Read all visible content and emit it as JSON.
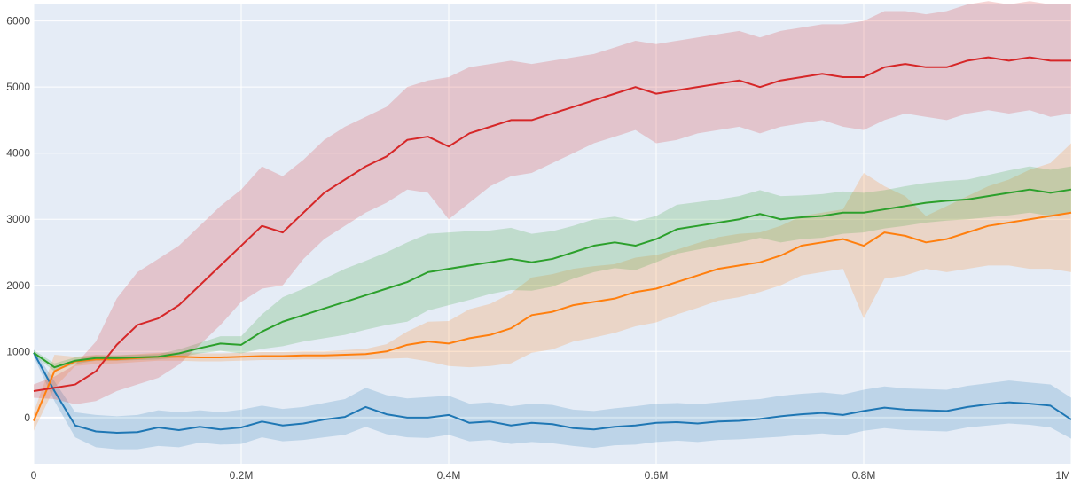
{
  "chart_data": {
    "type": "line",
    "title": "",
    "xlabel": "",
    "ylabel": "",
    "xlim": [
      0,
      1000000
    ],
    "ylim": [
      -700,
      6250
    ],
    "grid": true,
    "legend": "none",
    "background": "#e5ecf6",
    "x_ticks": [
      {
        "value": 0,
        "label": "0"
      },
      {
        "value": 200000,
        "label": "0.2M"
      },
      {
        "value": 400000,
        "label": "0.4M"
      },
      {
        "value": 600000,
        "label": "0.6M"
      },
      {
        "value": 800000,
        "label": "0.8M"
      },
      {
        "value": 1000000,
        "label": "1M"
      }
    ],
    "y_ticks": [
      {
        "value": 0,
        "label": "0"
      },
      {
        "value": 1000,
        "label": "1000"
      },
      {
        "value": 2000,
        "label": "2000"
      },
      {
        "value": 3000,
        "label": "3000"
      },
      {
        "value": 4000,
        "label": "4000"
      },
      {
        "value": 5000,
        "label": "5000"
      },
      {
        "value": 6000,
        "label": "6000"
      }
    ],
    "x": [
      0,
      20000,
      40000,
      60000,
      80000,
      100000,
      120000,
      140000,
      160000,
      180000,
      200000,
      220000,
      240000,
      260000,
      280000,
      300000,
      320000,
      340000,
      360000,
      380000,
      400000,
      420000,
      440000,
      460000,
      480000,
      500000,
      520000,
      540000,
      560000,
      580000,
      600000,
      620000,
      640000,
      660000,
      680000,
      700000,
      720000,
      740000,
      760000,
      780000,
      800000,
      820000,
      840000,
      860000,
      880000,
      900000,
      920000,
      940000,
      960000,
      980000,
      1000000
    ],
    "series": [
      {
        "color": "#1f77b4",
        "band_color": "#1f77b4",
        "mean": [
          980,
          400,
          -120,
          -210,
          -230,
          -220,
          -150,
          -190,
          -140,
          -180,
          -150,
          -60,
          -120,
          -90,
          -30,
          10,
          160,
          50,
          0,
          0,
          40,
          -80,
          -60,
          -120,
          -80,
          -100,
          -160,
          -180,
          -140,
          -120,
          -80,
          -70,
          -90,
          -60,
          -50,
          -20,
          20,
          50,
          70,
          40,
          100,
          150,
          120,
          110,
          100,
          160,
          200,
          230,
          210,
          180,
          -30
        ],
        "lower": [
          920,
          250,
          -300,
          -450,
          -480,
          -480,
          -430,
          -450,
          -380,
          -410,
          -400,
          -300,
          -360,
          -340,
          -300,
          -260,
          -140,
          -250,
          -300,
          -310,
          -260,
          -360,
          -340,
          -400,
          -370,
          -390,
          -430,
          -460,
          -420,
          -410,
          -370,
          -350,
          -370,
          -340,
          -330,
          -310,
          -290,
          -260,
          -240,
          -270,
          -200,
          -160,
          -190,
          -200,
          -210,
          -150,
          -120,
          -90,
          -110,
          -150,
          -320
        ],
        "upper": [
          1030,
          550,
          80,
          40,
          20,
          40,
          110,
          80,
          110,
          80,
          120,
          180,
          130,
          160,
          220,
          280,
          450,
          340,
          290,
          310,
          330,
          210,
          230,
          170,
          210,
          190,
          120,
          100,
          140,
          170,
          210,
          220,
          200,
          230,
          260,
          280,
          330,
          360,
          380,
          350,
          420,
          470,
          440,
          430,
          420,
          480,
          520,
          560,
          530,
          500,
          300
        ]
      },
      {
        "color": "#ff7f0e",
        "band_color": "#ff7f0e",
        "mean": [
          -50,
          700,
          850,
          880,
          880,
          900,
          920,
          920,
          910,
          910,
          920,
          930,
          930,
          940,
          940,
          950,
          960,
          1000,
          1100,
          1150,
          1120,
          1200,
          1250,
          1350,
          1550,
          1600,
          1700,
          1750,
          1800,
          1900,
          1950,
          2050,
          2150,
          2250,
          2300,
          2350,
          2450,
          2600,
          2650,
          2700,
          2600,
          2800,
          2750,
          2650,
          2700,
          2800,
          2900,
          2950,
          3000,
          3050,
          3100
        ],
        "lower": [
          -200,
          450,
          780,
          810,
          820,
          840,
          860,
          860,
          850,
          850,
          860,
          870,
          870,
          880,
          880,
          880,
          880,
          890,
          900,
          850,
          780,
          760,
          780,
          820,
          980,
          1030,
          1150,
          1210,
          1280,
          1380,
          1440,
          1560,
          1660,
          1770,
          1820,
          1900,
          2000,
          2150,
          2200,
          2250,
          1500,
          2100,
          2150,
          2250,
          2200,
          2250,
          2300,
          2300,
          2250,
          2250,
          2200
        ],
        "upper": [
          80,
          950,
          920,
          950,
          940,
          960,
          980,
          980,
          970,
          970,
          980,
          990,
          990,
          1000,
          1000,
          1020,
          1040,
          1110,
          1300,
          1450,
          1460,
          1640,
          1720,
          1880,
          2120,
          2170,
          2250,
          2290,
          2320,
          2420,
          2460,
          2540,
          2640,
          2730,
          2780,
          2800,
          2900,
          3050,
          3100,
          3150,
          3700,
          3500,
          3350,
          3050,
          3200,
          3350,
          3500,
          3600,
          3750,
          3850,
          4150
        ]
      },
      {
        "color": "#2ca02c",
        "band_color": "#2ca02c",
        "mean": [
          980,
          760,
          860,
          900,
          900,
          910,
          920,
          970,
          1050,
          1120,
          1100,
          1300,
          1450,
          1550,
          1650,
          1750,
          1850,
          1950,
          2050,
          2200,
          2250,
          2300,
          2350,
          2400,
          2350,
          2400,
          2500,
          2600,
          2650,
          2600,
          2700,
          2850,
          2900,
          2950,
          3000,
          3080,
          3000,
          3030,
          3050,
          3100,
          3100,
          3150,
          3200,
          3250,
          3280,
          3300,
          3350,
          3400,
          3450,
          3400,
          3450
        ],
        "lower": [
          940,
          700,
          810,
          860,
          860,
          870,
          880,
          910,
          970,
          1010,
          970,
          1040,
          1080,
          1150,
          1200,
          1250,
          1330,
          1400,
          1450,
          1620,
          1700,
          1780,
          1870,
          1930,
          1920,
          1980,
          2100,
          2200,
          2260,
          2230,
          2350,
          2480,
          2540,
          2600,
          2650,
          2720,
          2650,
          2700,
          2720,
          2780,
          2800,
          2860,
          2900,
          2950,
          2980,
          3000,
          3030,
          3060,
          3100,
          3050,
          3100
        ],
        "upper": [
          1020,
          820,
          910,
          940,
          940,
          950,
          960,
          1030,
          1130,
          1230,
          1230,
          1560,
          1820,
          1950,
          2100,
          2250,
          2370,
          2500,
          2650,
          2780,
          2800,
          2820,
          2830,
          2870,
          2780,
          2820,
          2900,
          3000,
          3040,
          2970,
          3050,
          3220,
          3260,
          3300,
          3350,
          3440,
          3350,
          3360,
          3380,
          3420,
          3400,
          3440,
          3500,
          3550,
          3580,
          3600,
          3670,
          3740,
          3800,
          3750,
          3800
        ]
      },
      {
        "color": "#d62728",
        "band_color": "#d62728",
        "mean": [
          400,
          450,
          500,
          700,
          1100,
          1400,
          1500,
          1700,
          2000,
          2300,
          2600,
          2900,
          2800,
          3100,
          3400,
          3600,
          3800,
          3950,
          4200,
          4250,
          4100,
          4300,
          4400,
          4500,
          4500,
          4600,
          4700,
          4800,
          4900,
          5000,
          4900,
          4950,
          5000,
          5050,
          5100,
          5000,
          5100,
          5150,
          5200,
          5150,
          5150,
          5300,
          5350,
          5300,
          5300,
          5400,
          5450,
          5400,
          5450,
          5400,
          5400
        ],
        "lower": [
          300,
          280,
          200,
          250,
          400,
          500,
          600,
          800,
          1100,
          1400,
          1750,
          1950,
          2000,
          2400,
          2700,
          2900,
          3100,
          3250,
          3450,
          3400,
          3000,
          3250,
          3500,
          3650,
          3700,
          3850,
          4000,
          4150,
          4250,
          4350,
          4150,
          4200,
          4300,
          4350,
          4400,
          4300,
          4400,
          4450,
          4500,
          4400,
          4350,
          4500,
          4600,
          4550,
          4500,
          4600,
          4650,
          4600,
          4650,
          4550,
          4600
        ],
        "upper": [
          500,
          620,
          800,
          1150,
          1800,
          2200,
          2400,
          2600,
          2900,
          3200,
          3450,
          3800,
          3650,
          3900,
          4200,
          4400,
          4550,
          4700,
          5000,
          5100,
          5150,
          5300,
          5350,
          5400,
          5350,
          5400,
          5450,
          5500,
          5600,
          5700,
          5650,
          5700,
          5750,
          5800,
          5850,
          5750,
          5850,
          5900,
          5950,
          5950,
          6000,
          6150,
          6150,
          6100,
          6150,
          6250,
          6300,
          6250,
          6300,
          6250,
          6250
        ]
      }
    ]
  }
}
